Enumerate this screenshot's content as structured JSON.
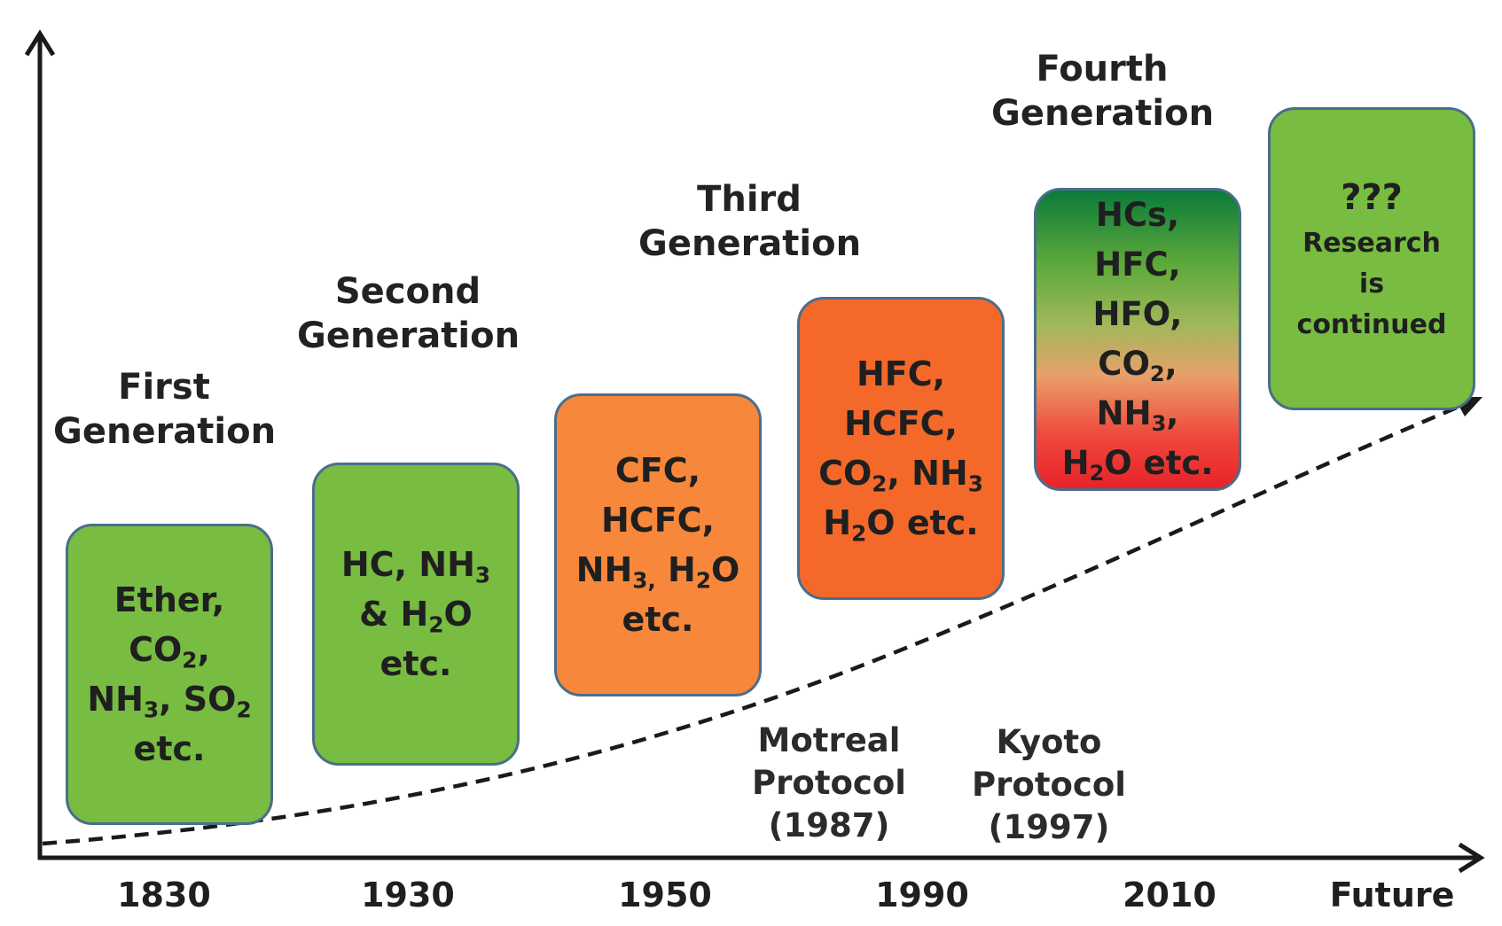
{
  "generations": [
    {
      "line1": "First",
      "line2": "Generation"
    },
    {
      "line1": "Second",
      "line2": "Generation"
    },
    {
      "line1": "Third",
      "line2": "Generation"
    },
    {
      "line1": "Fourth",
      "line2": "Generation"
    }
  ],
  "boxes": {
    "b1830": {
      "color": "#78bc41",
      "lines": [
        {
          "text": "Ether,"
        },
        {
          "pre": "CO",
          "sub": "2",
          "post": ","
        },
        {
          "pre": "NH",
          "sub": "3",
          "post": ", SO",
          "sub2": "2"
        },
        {
          "text": "etc."
        }
      ]
    },
    "b1930": {
      "color": "#78bc41",
      "lines": [
        {
          "pre": "HC, NH",
          "sub": "3"
        },
        {
          "pre": "& H",
          "sub": "2",
          "post": "O"
        },
        {
          "text": "etc."
        }
      ]
    },
    "b1950": {
      "color": "#f7873a",
      "lines": [
        {
          "text": "CFC,"
        },
        {
          "text": "HCFC,"
        },
        {
          "pre": "NH",
          "sub": "3,",
          "post": " H",
          "sub2": "2",
          "post2": "O"
        },
        {
          "text": "etc."
        }
      ]
    },
    "b1990": {
      "color": "#f4692a",
      "lines": [
        {
          "text": "HFC,"
        },
        {
          "text": "HCFC,"
        },
        {
          "pre": "CO",
          "sub": "2",
          "post": ", NH",
          "sub2": "3"
        },
        {
          "pre": "H",
          "sub": "2",
          "post": "O  etc."
        }
      ]
    },
    "b2010": {
      "color_top": "#0b7a3a",
      "color_bottom": "#e8222a",
      "lines": [
        {
          "text": "HCs,"
        },
        {
          "text": "HFC,"
        },
        {
          "text": "HFO,"
        },
        {
          "pre": "CO",
          "sub": "2",
          "post": ","
        },
        {
          "pre": "NH",
          "sub": "3",
          "post": ","
        },
        {
          "pre": "H",
          "sub": "2",
          "post": "O  etc."
        }
      ]
    },
    "future": {
      "color": "#78bc41",
      "lines": [
        {
          "text": "???"
        },
        {
          "text": "Research"
        },
        {
          "text": "is"
        },
        {
          "text": "continued"
        }
      ]
    }
  },
  "protocols": [
    {
      "line1": "Motreal",
      "line2": "Protocol",
      "line3": "(1987)"
    },
    {
      "line1": "Kyoto",
      "line2": "Protocol",
      "line3": "(1997)"
    }
  ],
  "years": [
    "1830",
    "1930",
    "1950",
    "1990",
    "2010",
    "Future"
  ]
}
